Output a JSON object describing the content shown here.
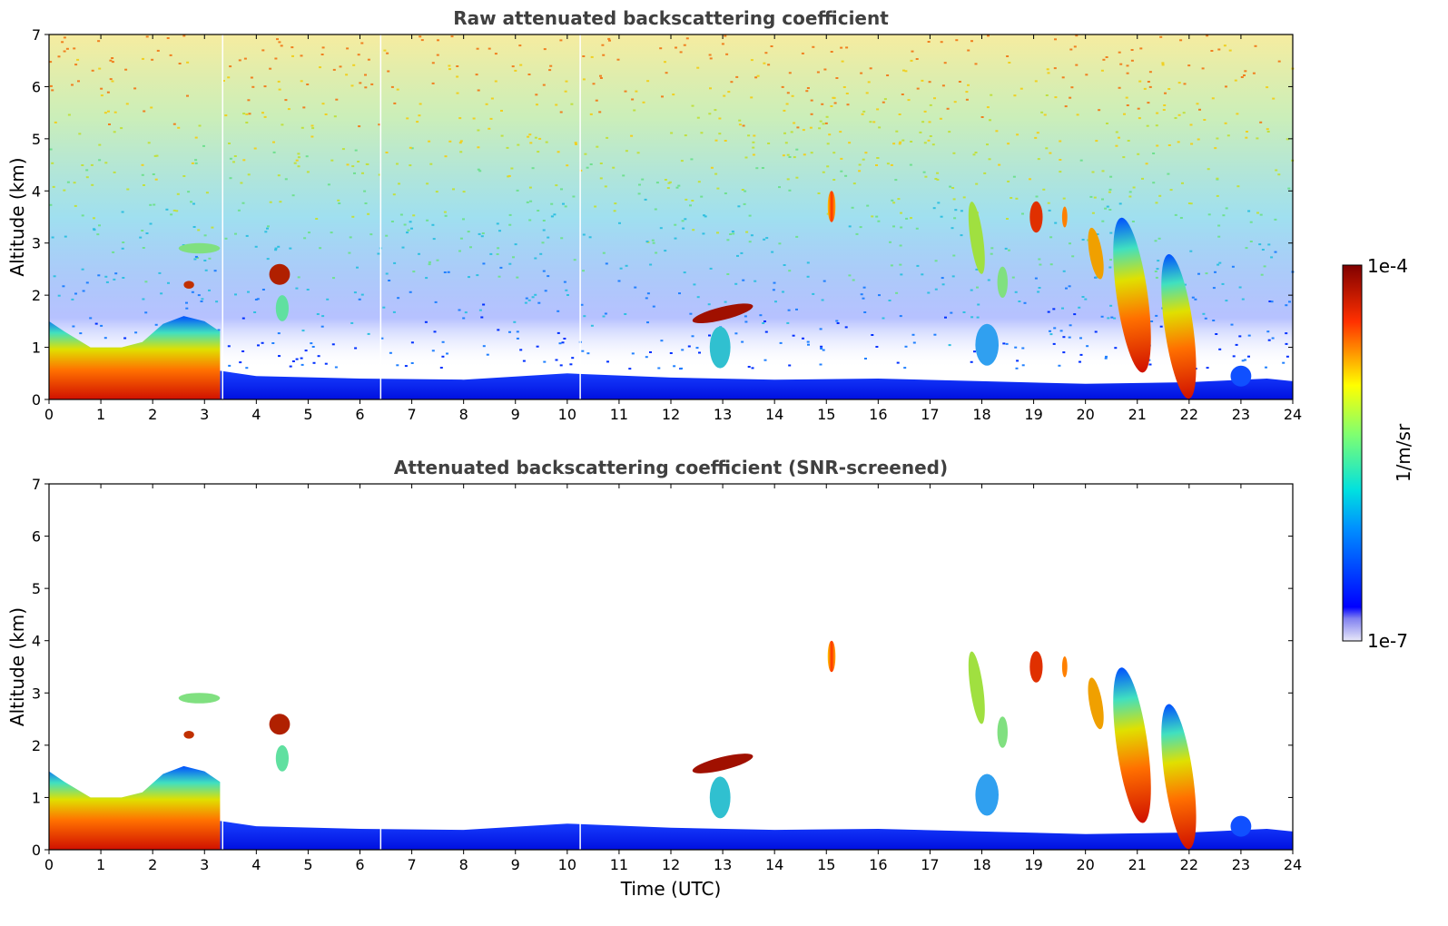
{
  "figure": {
    "colorbar": {
      "max_label": "1e-4",
      "min_label": "1e-7",
      "unit_label": "1/m/sr",
      "scale": "log"
    },
    "colors": {
      "title": "#404040",
      "background": "#ffffff"
    }
  },
  "chart_data": [
    {
      "type": "heatmap",
      "title": "Raw attenuated backscattering coefficient",
      "xlabel": "",
      "ylabel": "Altitude (km)",
      "xlim": [
        0,
        24
      ],
      "ylim": [
        0,
        7
      ],
      "xticks": [
        "0",
        "1",
        "2",
        "3",
        "4",
        "5",
        "6",
        "7",
        "8",
        "9",
        "10",
        "11",
        "12",
        "13",
        "14",
        "15",
        "16",
        "17",
        "18",
        "19",
        "20",
        "21",
        "22",
        "23",
        "24"
      ],
      "yticks": [
        "0",
        "1",
        "2",
        "3",
        "4",
        "5",
        "6",
        "7"
      ],
      "background_noise": true
    },
    {
      "type": "heatmap",
      "title": "Attenuated backscattering coefficient (SNR-screened)",
      "xlabel": "Time (UTC)",
      "ylabel": "Altitude (km)",
      "xlim": [
        0,
        24
      ],
      "ylim": [
        0,
        7
      ],
      "xticks": [
        "0",
        "1",
        "2",
        "3",
        "4",
        "5",
        "6",
        "7",
        "8",
        "9",
        "10",
        "11",
        "12",
        "13",
        "14",
        "15",
        "16",
        "17",
        "18",
        "19",
        "20",
        "21",
        "22",
        "23",
        "24"
      ],
      "yticks": [
        "0",
        "1",
        "2",
        "3",
        "4",
        "5",
        "6",
        "7"
      ],
      "background_noise": false
    }
  ]
}
